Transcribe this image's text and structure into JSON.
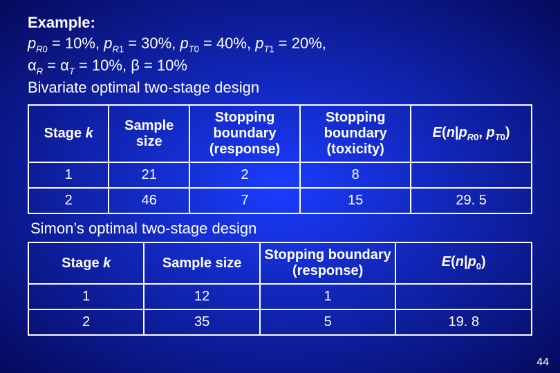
{
  "background": {
    "gradient_type": "radial",
    "center_color": "#1a3cff",
    "edge_color": "#050a5a"
  },
  "text_color": "#ffffff",
  "border_color": "#ffffff",
  "font_family": "Arial",
  "intro": {
    "title": "Example:",
    "line1_html": "p_R0 = 10%, p_R1 = 30%, p_T0 = 40%, p_T1 = 20%,",
    "line2_html": "α_R = α_T = 10%, β = 10%",
    "line3": "Bivariate optimal two-stage design",
    "font_size_pt": 22
  },
  "table_bivariate": {
    "columns": [
      {
        "label_html": "Stage <i>k</i>",
        "width_pct": 16
      },
      {
        "label_html": "Sample size",
        "width_pct": 16
      },
      {
        "label_html": "Stopping boundary (response)",
        "width_pct": 22
      },
      {
        "label_html": "Stopping boundary (toxicity)",
        "width_pct": 22
      },
      {
        "label_html": "E(n|p_R0, p_T0)",
        "width_pct": 24,
        "italic": true
      }
    ],
    "rows": [
      [
        "1",
        "21",
        "2",
        "8",
        ""
      ],
      [
        "2",
        "46",
        "7",
        "15",
        "29. 5"
      ]
    ],
    "header_fontsize_pt": 20,
    "cell_fontsize_pt": 20
  },
  "section2_label": "Simon’s optimal two-stage design",
  "table_simon": {
    "columns": [
      {
        "label_html": "Stage <i>k</i>",
        "width_pct": 23
      },
      {
        "label_html": "Sample size",
        "width_pct": 23
      },
      {
        "label_html": "Stopping boundary (response)",
        "width_pct": 27
      },
      {
        "label_html": "E(n|p_0)",
        "width_pct": 27,
        "italic": true
      }
    ],
    "rows": [
      [
        "1",
        "12",
        "1",
        ""
      ],
      [
        "2",
        "35",
        "5",
        "19. 8"
      ]
    ],
    "header_fontsize_pt": 20,
    "cell_fontsize_pt": 20
  },
  "page_number": "44"
}
